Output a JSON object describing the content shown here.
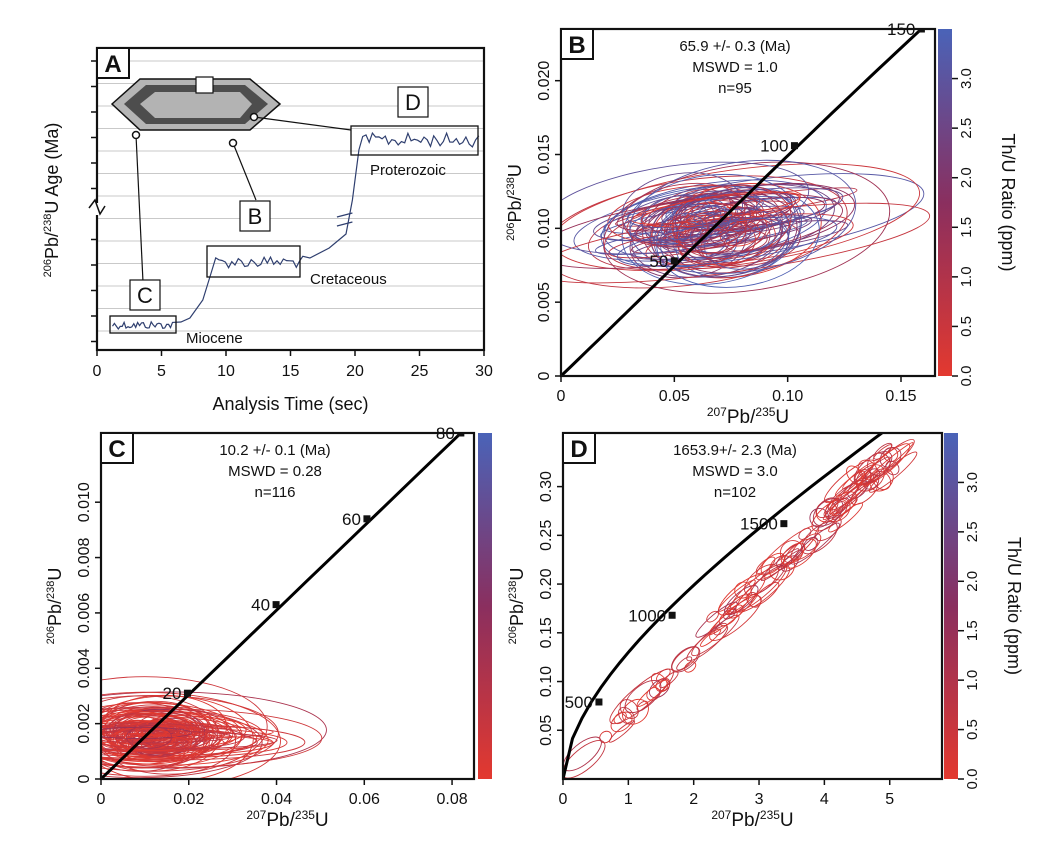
{
  "colors": {
    "low": "#e3392f",
    "mid": "#8a2f5f",
    "high": "#4a63b8",
    "trace": "#2f3f6f",
    "crystal_outer": "#b5b5b5",
    "crystal_mid": "#4d4d4d",
    "crystal_inner": "#b3b3b3"
  },
  "icons": [
    "zircon-crystal-icon"
  ],
  "chart_data": [
    {
      "id": "A",
      "type": "line",
      "panel_label": "A",
      "xlabel": "Analysis Time (sec)",
      "ylabel_parts": [
        "206",
        "Pb/",
        "238",
        "U Age (Ma)"
      ],
      "xlim": [
        0,
        30
      ],
      "x_ticks": [
        0,
        5,
        10,
        15,
        20,
        25,
        30
      ],
      "x_tick_labels": [
        "0",
        "5",
        "10",
        "15",
        "20",
        "25",
        "30"
      ],
      "y_axis_break": true,
      "segments": [
        {
          "name": "Miocene",
          "x_range": [
            1,
            6
          ]
        },
        {
          "name": "Cretaceous",
          "x_range": [
            8.5,
            16
          ]
        },
        {
          "name": "Proterozoic",
          "x_range": [
            20,
            30
          ]
        }
      ],
      "annotations": [
        "Miocene",
        "Cretaceous",
        "Proterozoic"
      ],
      "box_labels": [
        "C",
        "B",
        "D"
      ]
    },
    {
      "id": "B",
      "type": "scatter",
      "panel_label": "B",
      "title_lines": [
        "65.9 +/- 0.3 (Ma)",
        "MSWD = 1.0",
        "n=95"
      ],
      "xlabel_parts": [
        "207",
        "Pb/",
        "235",
        "U"
      ],
      "ylabel_parts": [
        "206",
        "Pb/",
        "238",
        "U"
      ],
      "xlim": [
        0,
        0.165
      ],
      "ylim": [
        0,
        0.0235
      ],
      "x_ticks": [
        0,
        0.05,
        0.1,
        0.15
      ],
      "x_tick_labels": [
        "0",
        "0.05",
        "0.10",
        "0.15"
      ],
      "y_ticks": [
        0,
        0.005,
        0.01,
        0.015,
        0.02
      ],
      "y_tick_labels": [
        "0",
        "0.005",
        "0.010",
        "0.015",
        "0.020"
      ],
      "concordia_markers": [
        {
          "label": "50",
          "x": 0.05,
          "y": 0.0078
        },
        {
          "label": "100",
          "x": 0.103,
          "y": 0.0156
        },
        {
          "label": "150",
          "x": 0.159,
          "y": 0.0235
        }
      ],
      "ellipse_cluster": {
        "center": [
          0.067,
          0.0102
        ],
        "n": 95
      },
      "colorbar": {
        "label": "Th/U Ratio (ppm)",
        "range": [
          0,
          3.5
        ],
        "ticks": [
          0,
          0.5,
          1,
          1.5,
          2,
          2.5,
          3
        ],
        "tick_labels": [
          "0.0",
          "0.5",
          "1.0",
          "1.5",
          "2.0",
          "2.5",
          "3.0"
        ]
      }
    },
    {
      "id": "C",
      "type": "scatter",
      "panel_label": "C",
      "title_lines": [
        "10.2 +/- 0.1 (Ma)",
        "MSWD = 0.28",
        "n=116"
      ],
      "xlabel_parts": [
        "207",
        "Pb/",
        "235",
        "U"
      ],
      "ylabel_parts": [
        "206",
        "Pb/",
        "238",
        "U"
      ],
      "xlim": [
        0,
        0.085
      ],
      "ylim": [
        0,
        0.0125
      ],
      "x_ticks": [
        0,
        0.02,
        0.04,
        0.06,
        0.08
      ],
      "x_tick_labels": [
        "0",
        "0.02",
        "0.04",
        "0.06",
        "0.08"
      ],
      "y_ticks": [
        0,
        0.002,
        0.004,
        0.006,
        0.008,
        0.01
      ],
      "y_tick_labels": [
        "0",
        "0.002",
        "0.004",
        "0.006",
        "0.008",
        "0.010"
      ],
      "concordia_markers": [
        {
          "label": "20",
          "x": 0.0197,
          "y": 0.0031
        },
        {
          "label": "40",
          "x": 0.0399,
          "y": 0.0063
        },
        {
          "label": "60",
          "x": 0.0606,
          "y": 0.0094
        },
        {
          "label": "80",
          "x": 0.082,
          "y": 0.0125
        }
      ],
      "ellipse_cluster": {
        "center": [
          0.0102,
          0.0016
        ],
        "n": 116
      },
      "colorbar": {
        "range": [
          0,
          3.5
        ]
      }
    },
    {
      "id": "D",
      "type": "scatter",
      "panel_label": "D",
      "title_lines": [
        "1653.9+/- 2.3 (Ma)",
        "MSWD = 3.0",
        "n=102"
      ],
      "xlabel_parts": [
        "207",
        "Pb/",
        "235",
        "U"
      ],
      "ylabel_parts": [
        "206",
        "Pb/",
        "238",
        "U"
      ],
      "xlim": [
        0,
        5.8
      ],
      "ylim": [
        0,
        0.355
      ],
      "x_ticks": [
        0,
        1,
        2,
        3,
        4,
        5
      ],
      "x_tick_labels": [
        "0",
        "1",
        "2",
        "3",
        "4",
        "5"
      ],
      "y_ticks": [
        0.05,
        0.1,
        0.15,
        0.2,
        0.25,
        0.3
      ],
      "y_tick_labels": [
        "0.05",
        "0.10",
        "0.15",
        "0.20",
        "0.25",
        "0.30"
      ],
      "concordia_markers": [
        {
          "label": "500",
          "x": 0.55,
          "y": 0.079
        },
        {
          "label": "1000",
          "x": 1.67,
          "y": 0.168
        },
        {
          "label": "1500",
          "x": 3.38,
          "y": 0.262
        }
      ],
      "ellipse_trend": {
        "from": [
          0.3,
          0.02
        ],
        "to": [
          5.0,
          0.33
        ],
        "n": 102
      },
      "colorbar": {
        "label": "Th/U Ratio (ppm)",
        "range": [
          0,
          3.5
        ],
        "ticks": [
          0,
          0.5,
          1,
          1.5,
          2,
          2.5,
          3
        ],
        "tick_labels": [
          "0.0",
          "0.5",
          "1.0",
          "1.5",
          "2.0",
          "2.5",
          "3.0"
        ]
      }
    }
  ]
}
